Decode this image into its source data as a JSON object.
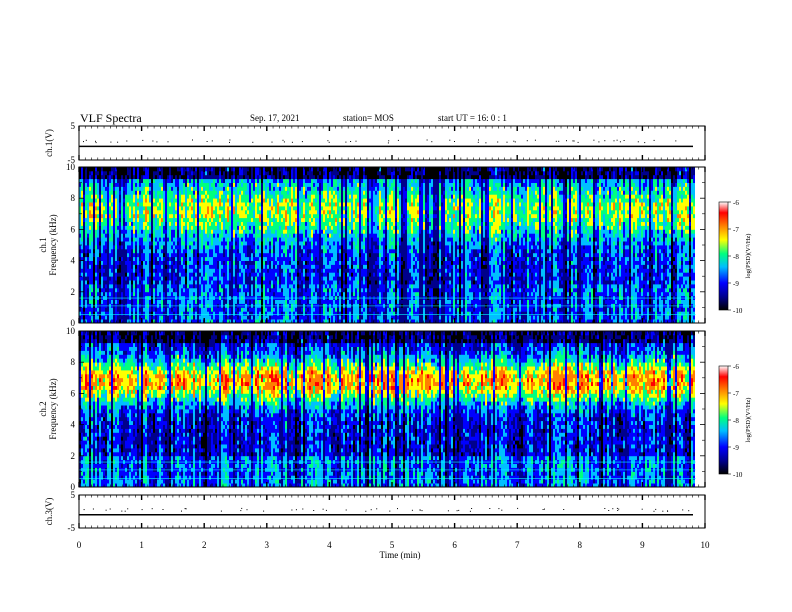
{
  "header": {
    "title": "VLF Spectra",
    "date": "Sep. 17, 2021",
    "station": "station= MOS",
    "start": "start  UT  =   16: 0  : 1"
  },
  "chart_data": [
    {
      "type": "line",
      "panel": "ch1-waveform",
      "ylabel": "ch.1(V)",
      "yticks": [
        "5",
        "-5"
      ],
      "ylim": [
        -5,
        5
      ],
      "x": [
        0,
        10
      ],
      "series": [
        {
          "values": [
            -1,
            -1
          ]
        }
      ]
    },
    {
      "type": "heatmap",
      "panel": "ch1-spectrogram",
      "ylabel_line1": "ch.1",
      "ylabel_line2": "Frequency (kHz)",
      "yticks": [
        "0",
        "2",
        "4",
        "6",
        "8",
        "10"
      ],
      "ylim": [
        0,
        10
      ],
      "xlim": [
        0,
        9.85
      ],
      "colorbar": {
        "label": "log(PSD)(V²/Hz)",
        "ticks": [
          "-6",
          "-7",
          "-8",
          "-9",
          "-10"
        ],
        "range": [
          -10,
          -6
        ]
      }
    },
    {
      "type": "heatmap",
      "panel": "ch2-spectrogram",
      "ylabel_line1": "ch.2",
      "ylabel_line2": "Frequency (kHz)",
      "yticks": [
        "0",
        "2",
        "4",
        "6",
        "8",
        "10"
      ],
      "ylim": [
        0,
        10
      ],
      "xlim": [
        0,
        9.85
      ],
      "colorbar": {
        "label": "log(PSD)(V²/Hz)",
        "ticks": [
          "-6",
          "-7",
          "-8",
          "-9",
          "-10"
        ],
        "range": [
          -10,
          -6
        ]
      }
    },
    {
      "type": "line",
      "panel": "ch3-waveform",
      "ylabel": "ch.3(V)",
      "yticks": [
        "5",
        "-5"
      ],
      "ylim": [
        -5,
        5
      ],
      "x": [
        0,
        10
      ],
      "series": [
        {
          "values": [
            -1,
            -1
          ]
        }
      ]
    }
  ],
  "xaxis": {
    "label": "Time  (min)",
    "ticks": [
      "0",
      "1",
      "2",
      "3",
      "4",
      "5",
      "6",
      "7",
      "8",
      "9",
      "10"
    ],
    "xlim": [
      0,
      10
    ]
  },
  "colors": {
    "cmap": [
      "#000000",
      "#00008b",
      "#0000ff",
      "#00bfff",
      "#00ff7f",
      "#ffff00",
      "#ff7f00",
      "#ff0000",
      "#ffffff"
    ]
  }
}
